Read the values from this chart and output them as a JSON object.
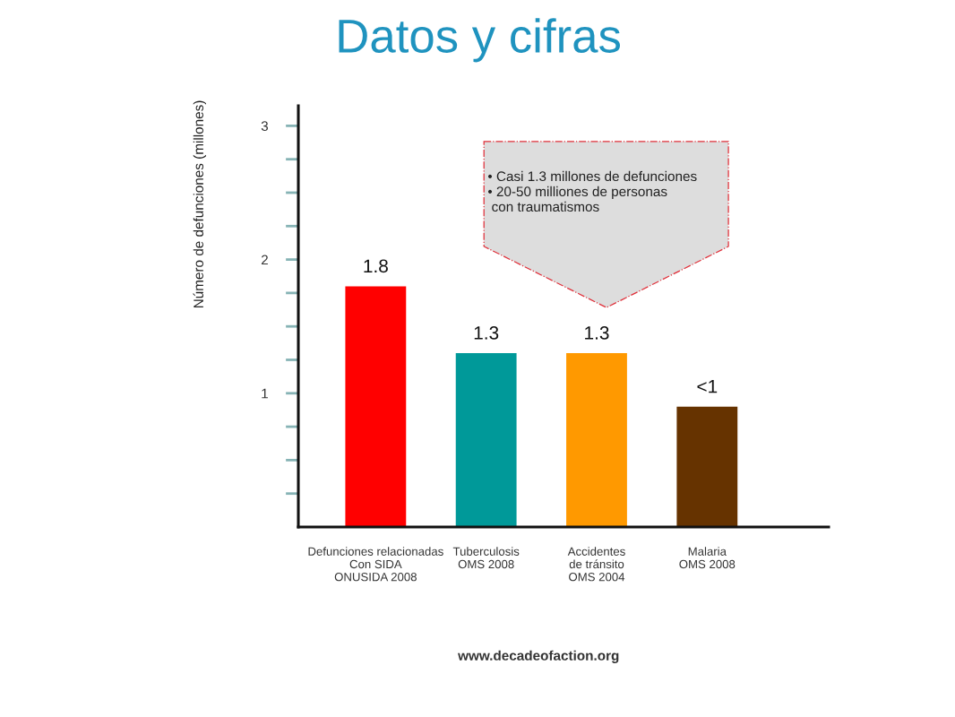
{
  "chart_data": {
    "type": "bar",
    "title": "Datos y cifras",
    "ylabel": "Número de defunciones (millones)",
    "categories": [
      "Defunciones relacionadas\nCon SIDA\nONUSIDA 2008",
      "Tuberculosis\nOMS 2008",
      "Accidentes\nde tránsito\nOMS 2004",
      "Malaria\nOMS 2008"
    ],
    "values": [
      1.8,
      1.3,
      1.3,
      0.9
    ],
    "colors": [
      "#ff0000",
      "#009999",
      "#ff9900",
      "#663300"
    ],
    "value_labels": [
      "1.8",
      "1.3",
      "1.3",
      "<1"
    ],
    "ylim": [
      0,
      3.15
    ],
    "yticks": [
      {
        "value": 0.25,
        "label": null
      },
      {
        "value": 0.5,
        "label": null
      },
      {
        "value": 0.75,
        "label": null
      },
      1,
      {
        "value": 1.25,
        "label": null
      },
      {
        "value": 1.5,
        "label": null
      },
      {
        "value": 1.75,
        "label": null
      },
      2,
      {
        "value": 2.25,
        "label": null
      },
      {
        "value": 2.5,
        "label": null
      },
      {
        "value": 2.75,
        "label": null
      },
      3
    ],
    "annotations": [
      "• Casi 1.3 millones de defunciones\n• 20-50 milliones de personas\n con traumatismos",
      "www.decadeofaction.org"
    ]
  }
}
